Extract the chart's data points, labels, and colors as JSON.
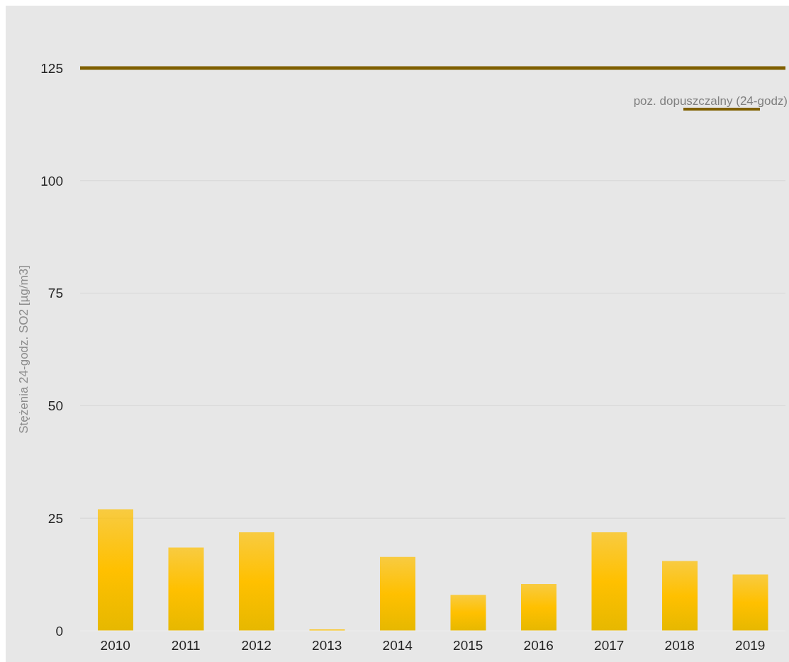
{
  "chart_data": {
    "type": "bar",
    "ylabel": "Stężenia 24-godz. SO2 [µg/m3]",
    "categories": [
      "2010",
      "2011",
      "2012",
      "2013",
      "2014",
      "2015",
      "2016",
      "2017",
      "2018",
      "2019"
    ],
    "values": [
      27,
      18.5,
      21.9,
      0.3,
      16.4,
      8,
      10.4,
      21.9,
      15.5,
      12.5
    ],
    "color": "#ffc000",
    "ylim": [
      0,
      125
    ],
    "yticks": [
      0,
      25,
      50,
      75,
      100,
      125
    ],
    "grid": "y",
    "legend": "top right",
    "ref_lines": [
      {
        "axis": "y",
        "value": 125,
        "label": "poz. dopuszczalny (24-godz)",
        "color": "#7f6000"
      }
    ]
  }
}
